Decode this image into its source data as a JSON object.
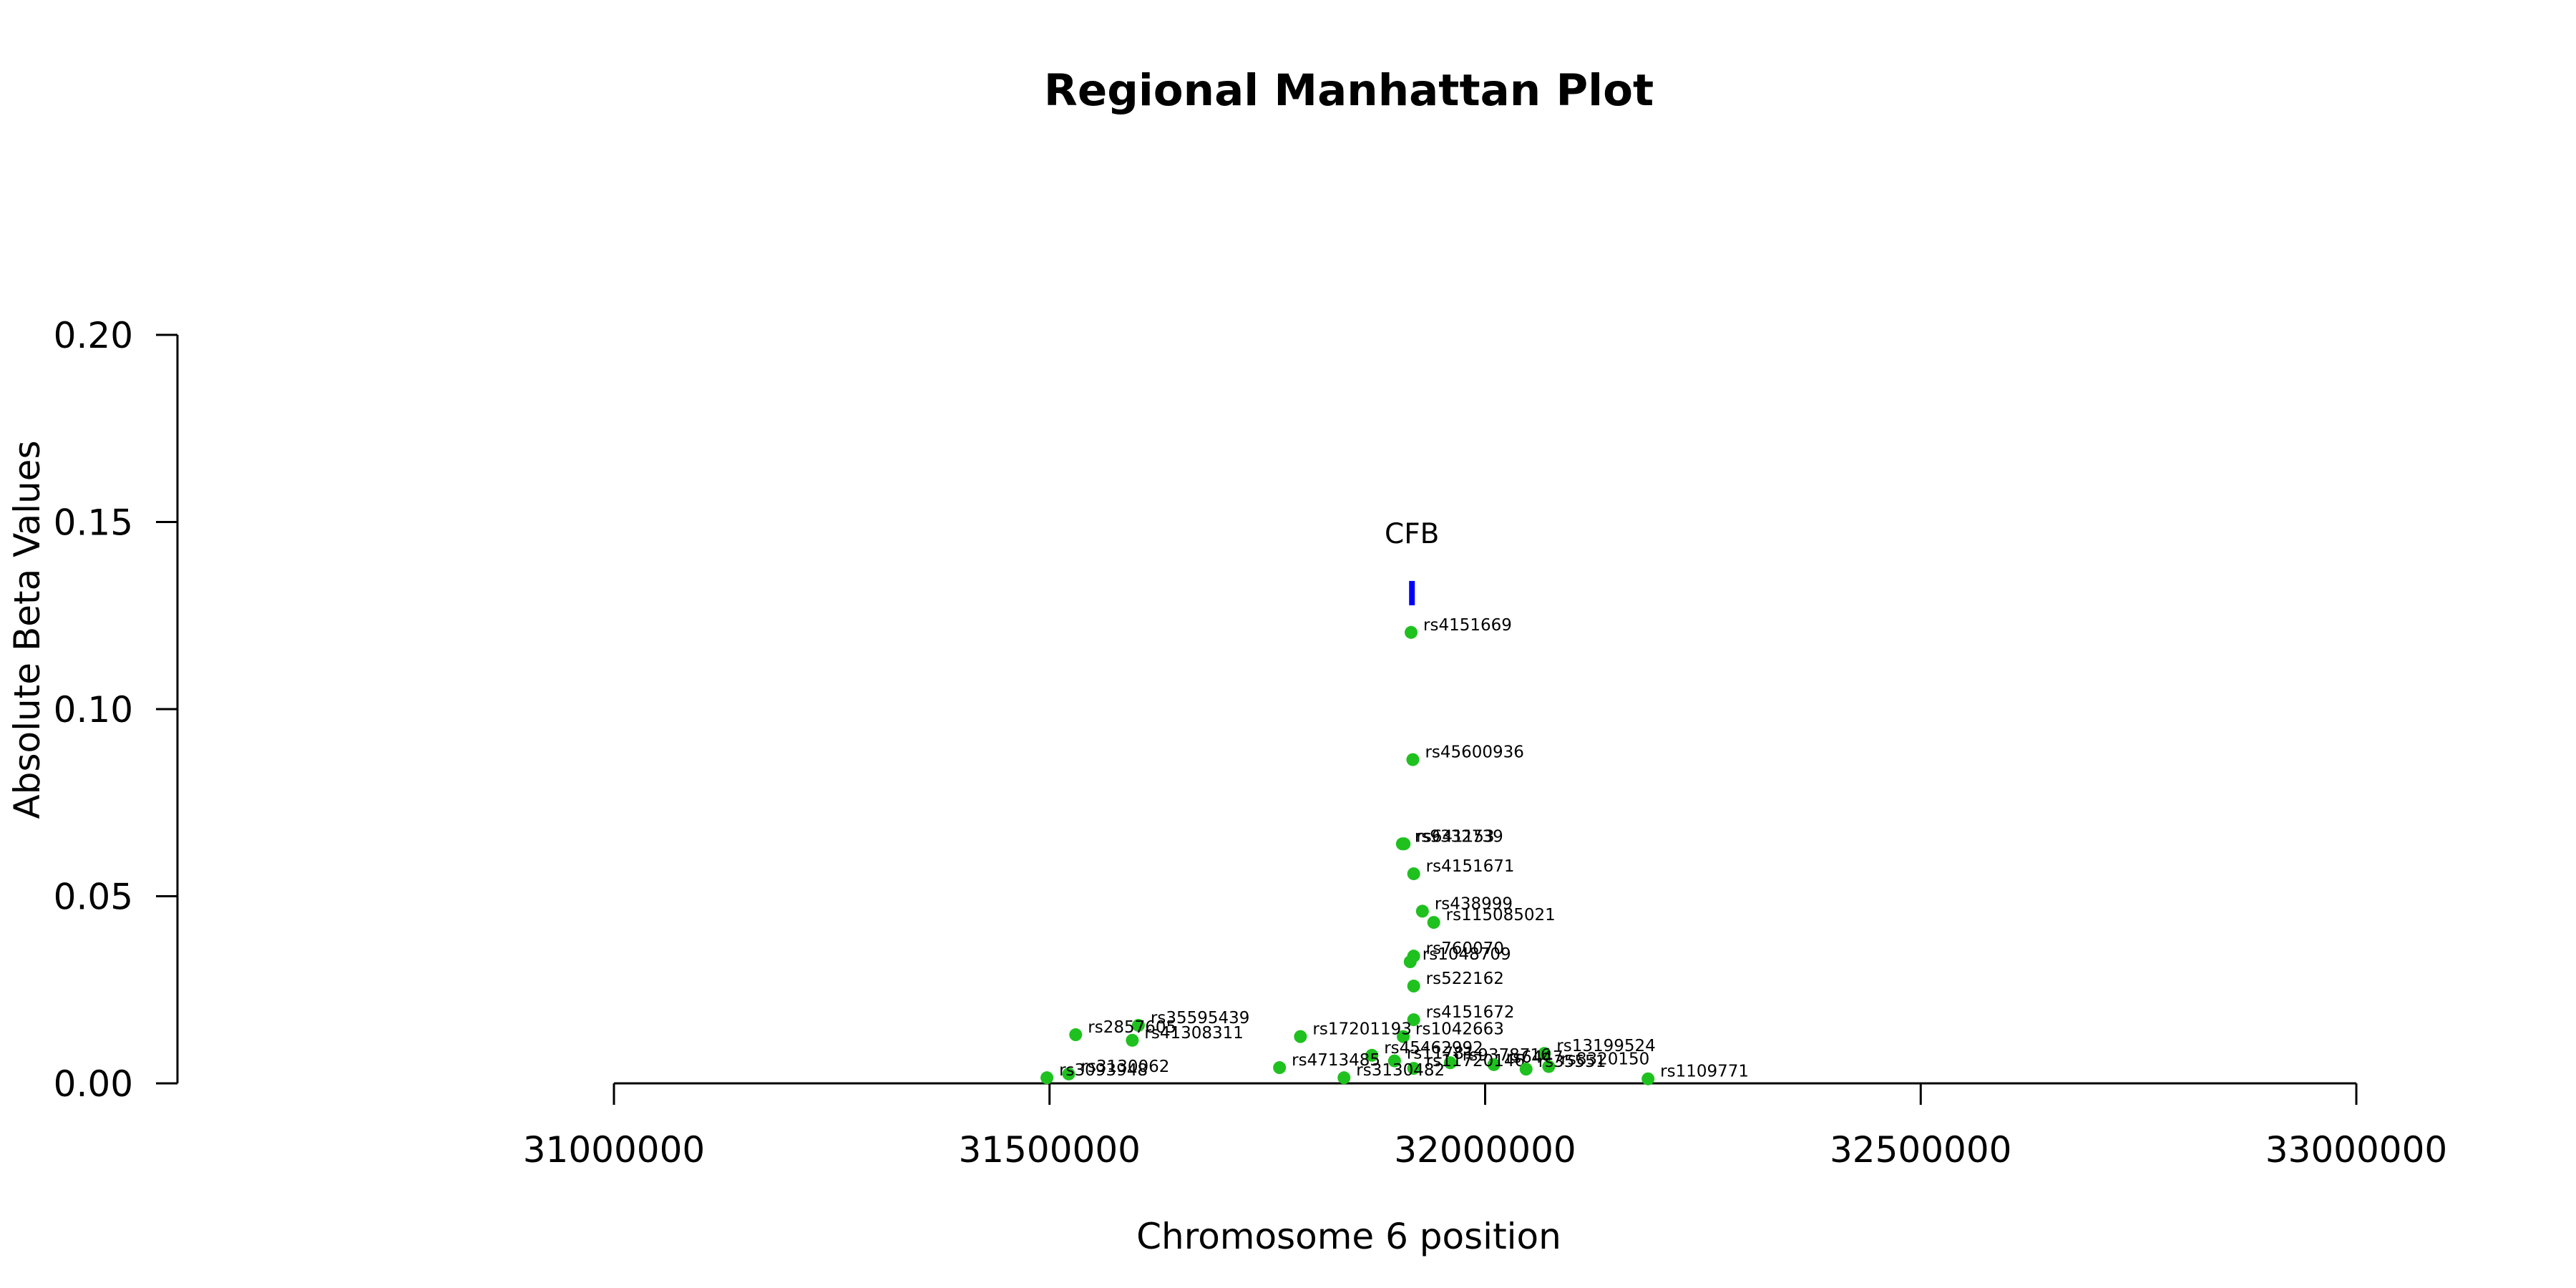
{
  "chart_data": {
    "type": "scatter",
    "title": "Regional Manhattan Plot",
    "xlabel": "Chromosome 6 position",
    "ylabel": "Absolute Beta Values",
    "xlim": [
      31000000,
      33000000
    ],
    "ylim": [
      0,
      0.2
    ],
    "x_ticks": [
      31000000,
      31500000,
      32000000,
      32500000,
      33000000
    ],
    "x_tick_labels": [
      "31000000",
      "31500000",
      "32000000",
      "32500000",
      "33000000"
    ],
    "y_ticks": [
      0,
      0.05,
      0.1,
      0.15,
      0.2
    ],
    "y_tick_labels": [
      "0.00",
      "0.05",
      "0.10",
      "0.15",
      "0.20"
    ],
    "grid": false,
    "point_color": "#1fc11f",
    "gene_color": "#0000ff",
    "genes": [
      {
        "name": "CFB",
        "start": 31913000,
        "end": 31919000,
        "y": 0.131
      }
    ],
    "points": [
      {
        "label": "rs4151669",
        "x": 31915000,
        "y": 0.1205
      },
      {
        "label": "rs45600936",
        "x": 31917000,
        "y": 0.0865
      },
      {
        "label": "rs9332739",
        "x": 31905000,
        "y": 0.064
      },
      {
        "label": "rs641153",
        "x": 31907000,
        "y": 0.064
      },
      {
        "label": "rs4151671",
        "x": 31918000,
        "y": 0.056
      },
      {
        "label": "rs438999",
        "x": 31928000,
        "y": 0.046
      },
      {
        "label": "rs115085021",
        "x": 31941000,
        "y": 0.043
      },
      {
        "label": "rs760070",
        "x": 31918000,
        "y": 0.034
      },
      {
        "label": "rs1048709",
        "x": 31914000,
        "y": 0.0325
      },
      {
        "label": "rs522162",
        "x": 31918000,
        "y": 0.026
      },
      {
        "label": "rs4151672",
        "x": 31918000,
        "y": 0.017
      },
      {
        "label": "rs1042663",
        "x": 31906000,
        "y": 0.0125
      },
      {
        "label": "rs17201193",
        "x": 31788000,
        "y": 0.0125
      },
      {
        "label": "rs35595439",
        "x": 31602000,
        "y": 0.0155
      },
      {
        "label": "rs2857605",
        "x": 31530000,
        "y": 0.013
      },
      {
        "label": "rs41308311",
        "x": 31595000,
        "y": 0.0115
      },
      {
        "label": "rs13199524",
        "x": 32068000,
        "y": 0.008
      },
      {
        "label": "rs45462992",
        "x": 31870000,
        "y": 0.0075
      },
      {
        "label": "rs11781",
        "x": 31896000,
        "y": 0.006
      },
      {
        "label": "rs9378716",
        "x": 31960000,
        "y": 0.0055
      },
      {
        "label": "rs6447",
        "x": 32010000,
        "y": 0.005
      },
      {
        "label": "rs8320150",
        "x": 32073000,
        "y": 0.0045
      },
      {
        "label": "rs4713485",
        "x": 31764000,
        "y": 0.0042
      },
      {
        "label": "rs11720146",
        "x": 31918000,
        "y": 0.004
      },
      {
        "label": "rs35551",
        "x": 32047000,
        "y": 0.0038
      },
      {
        "label": "rs3130062",
        "x": 31522000,
        "y": 0.0025
      },
      {
        "label": "rs3130482",
        "x": 31838000,
        "y": 0.0015
      },
      {
        "label": "rs3093948",
        "x": 31497000,
        "y": 0.0015
      },
      {
        "label": "rs1109771",
        "x": 32187000,
        "y": 0.0012
      }
    ]
  }
}
